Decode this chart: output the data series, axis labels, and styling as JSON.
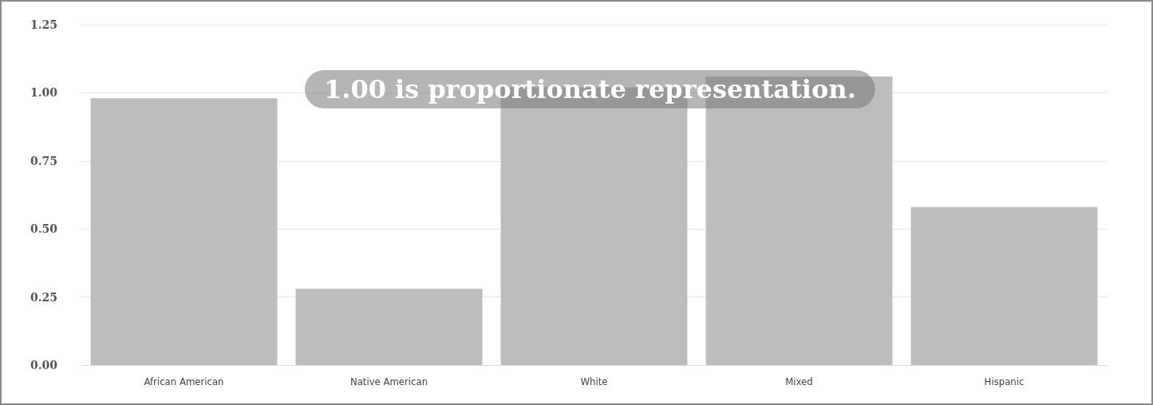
{
  "chart_data": {
    "type": "bar",
    "categories": [
      "African American",
      "Native American",
      "White",
      "Mixed",
      "Hispanic"
    ],
    "values": [
      0.98,
      0.28,
      1.02,
      1.06,
      0.58
    ],
    "color": "#bdbdbd",
    "ylim": [
      0,
      1.25
    ],
    "yticks": [
      {
        "value": 0,
        "label": "0.00"
      },
      0.25,
      {
        "value": 0.5,
        "label": "0.50"
      },
      0.75,
      {
        "value": 1,
        "label": "1.00"
      },
      1.25
    ],
    "grid": "y",
    "annotations": [
      "1.00 is proportionate representation."
    ]
  }
}
